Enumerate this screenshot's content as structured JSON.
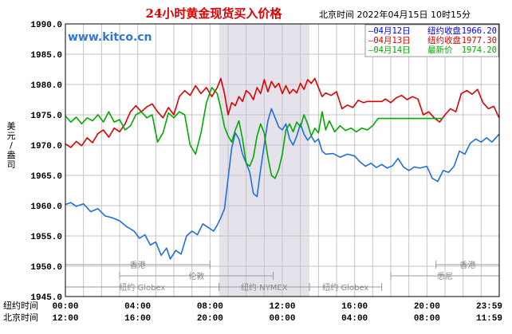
{
  "chart_data": {
    "type": "line",
    "title": "24小时黄金现货买入价格",
    "header_info": "北京时间  2022年04月15日 10时15分",
    "watermark": "www.kitco.cn",
    "ylabel": [
      "美",
      "元",
      "/",
      "盎",
      "司"
    ],
    "ylim": [
      1945,
      1990
    ],
    "yticks": [
      "1990.0",
      "1985.0",
      "1980.0",
      "1975.0",
      "1970.0",
      "1965.0",
      "1960.0",
      "1955.0",
      "1950.0",
      "1945.0"
    ],
    "xlim": [
      0,
      24
    ],
    "x_rows": [
      {
        "label": "纽约时间",
        "ticks": [
          "00:00",
          "04:00",
          "08:00",
          "12:00",
          "16:00",
          "20:00",
          "23:59"
        ]
      },
      {
        "label": "北京时间",
        "ticks": [
          "12:00",
          "16:00",
          "20:00",
          "00:00",
          "04:00",
          "08:00",
          "11:59"
        ]
      }
    ],
    "shaded_region": [
      8.5,
      13.5
    ],
    "market_bands": [
      {
        "name": "香港",
        "start": 0,
        "end": 8,
        "row": 0
      },
      {
        "name": "香港",
        "start": 20.5,
        "end": 24,
        "row": 0
      },
      {
        "name": "伦敦",
        "start": 3,
        "end": 11.5,
        "row": 1
      },
      {
        "name": "悉尼",
        "start": 18,
        "end": 24,
        "row": 1
      },
      {
        "name": "纽约 Globex",
        "start": 0,
        "end": 8.5,
        "row": 2
      },
      {
        "name": "纽约 NYMEX",
        "start": 8.5,
        "end": 13.5,
        "row": 2
      },
      {
        "name": "纽约 Globex",
        "start": 13.5,
        "end": 17.5,
        "row": 2
      }
    ],
    "legend": [
      {
        "date": "—04月12日",
        "kind": "纽约收盘",
        "value": "1966.20",
        "color": "#0000ff"
      },
      {
        "date": "—04月13日",
        "kind": "纽约收盘",
        "value": "1977.30",
        "color": "#dd0000"
      },
      {
        "date": "—04月14日",
        "kind": "最新价",
        "value": "1974.20",
        "color": "#00aa00"
      }
    ],
    "series": [
      {
        "name": "04月12日",
        "color": "#1f6fdc",
        "points": [
          [
            0,
            1960.2
          ],
          [
            0.3,
            1960.5
          ],
          [
            0.6,
            1959.9
          ],
          [
            1.0,
            1960.3
          ],
          [
            1.4,
            1959.0
          ],
          [
            1.8,
            1959.5
          ],
          [
            2.2,
            1958.3
          ],
          [
            2.6,
            1958.0
          ],
          [
            3.0,
            1957.5
          ],
          [
            3.4,
            1956.5
          ],
          [
            3.8,
            1955.8
          ],
          [
            4.1,
            1954.6
          ],
          [
            4.4,
            1955.2
          ],
          [
            4.7,
            1953.5
          ],
          [
            5.0,
            1954.0
          ],
          [
            5.3,
            1951.8
          ],
          [
            5.6,
            1953.0
          ],
          [
            5.8,
            1951.2
          ],
          [
            6.1,
            1952.6
          ],
          [
            6.4,
            1952.0
          ],
          [
            6.7,
            1955.0
          ],
          [
            7.0,
            1955.8
          ],
          [
            7.3,
            1955.2
          ],
          [
            7.6,
            1957.0
          ],
          [
            7.9,
            1956.4
          ],
          [
            8.2,
            1955.8
          ],
          [
            8.4,
            1956.8
          ],
          [
            8.6,
            1958.0
          ],
          [
            8.8,
            1959.5
          ],
          [
            9.0,
            1964.5
          ],
          [
            9.2,
            1969.5
          ],
          [
            9.4,
            1972.0
          ],
          [
            9.6,
            1971.0
          ],
          [
            9.8,
            1968.5
          ],
          [
            10.0,
            1967.0
          ],
          [
            10.2,
            1965.5
          ],
          [
            10.4,
            1962.0
          ],
          [
            10.6,
            1961.5
          ],
          [
            10.8,
            1966.0
          ],
          [
            11.0,
            1970.0
          ],
          [
            11.2,
            1974.0
          ],
          [
            11.4,
            1976.0
          ],
          [
            11.6,
            1974.5
          ],
          [
            11.8,
            1973.0
          ],
          [
            12.0,
            1972.5
          ],
          [
            12.2,
            1973.5
          ],
          [
            12.4,
            1971.0
          ],
          [
            12.6,
            1970.0
          ],
          [
            12.8,
            1971.5
          ],
          [
            13.0,
            1973.5
          ],
          [
            13.2,
            1971.8
          ],
          [
            13.4,
            1970.8
          ],
          [
            13.6,
            1971.5
          ],
          [
            13.8,
            1970.5
          ],
          [
            14.0,
            1971.0
          ],
          [
            14.2,
            1969.0
          ],
          [
            14.4,
            1968.5
          ],
          [
            14.8,
            1968.6
          ],
          [
            15.2,
            1968.0
          ],
          [
            15.6,
            1968.5
          ],
          [
            16.0,
            1968.2
          ],
          [
            16.3,
            1967.2
          ],
          [
            16.6,
            1966.5
          ],
          [
            16.9,
            1967.0
          ],
          [
            17.2,
            1966.3
          ],
          [
            17.5,
            1966.8
          ],
          [
            17.8,
            1966.2
          ],
          [
            18.1,
            1966.6
          ],
          [
            18.4,
            1967.8
          ],
          [
            18.7,
            1966.4
          ],
          [
            19.0,
            1965.8
          ],
          [
            19.3,
            1966.4
          ],
          [
            19.6,
            1966.2
          ],
          [
            20.0,
            1966.5
          ],
          [
            20.3,
            1964.5
          ],
          [
            20.6,
            1964.0
          ],
          [
            20.9,
            1965.8
          ],
          [
            21.2,
            1965.5
          ],
          [
            21.5,
            1966.5
          ],
          [
            21.8,
            1969.0
          ],
          [
            22.1,
            1968.5
          ],
          [
            22.4,
            1970.3
          ],
          [
            22.7,
            1971.0
          ],
          [
            23.0,
            1970.5
          ],
          [
            23.3,
            1971.2
          ],
          [
            23.6,
            1970.5
          ],
          [
            23.99,
            1971.8
          ]
        ]
      },
      {
        "name": "04月13日",
        "color": "#dd0000",
        "points": [
          [
            0,
            1970.2
          ],
          [
            0.3,
            1969.6
          ],
          [
            0.6,
            1970.6
          ],
          [
            0.9,
            1969.9
          ],
          [
            1.2,
            1971.2
          ],
          [
            1.5,
            1970.4
          ],
          [
            1.8,
            1971.9
          ],
          [
            2.1,
            1972.5
          ],
          [
            2.4,
            1971.3
          ],
          [
            2.7,
            1972.8
          ],
          [
            3.0,
            1972.2
          ],
          [
            3.3,
            1973.5
          ],
          [
            3.6,
            1975.5
          ],
          [
            3.9,
            1976.5
          ],
          [
            4.2,
            1975.5
          ],
          [
            4.5,
            1976.3
          ],
          [
            4.8,
            1976.8
          ],
          [
            5.1,
            1975.5
          ],
          [
            5.4,
            1974.5
          ],
          [
            5.7,
            1976.2
          ],
          [
            6.0,
            1975.0
          ],
          [
            6.3,
            1978.0
          ],
          [
            6.6,
            1979.0
          ],
          [
            6.9,
            1978.2
          ],
          [
            7.2,
            1979.8
          ],
          [
            7.5,
            1978.5
          ],
          [
            7.8,
            1979.5
          ],
          [
            8.1,
            1978.0
          ],
          [
            8.4,
            1979.5
          ],
          [
            8.6,
            1981.0
          ],
          [
            8.8,
            1978.5
          ],
          [
            9.0,
            1975.0
          ],
          [
            9.2,
            1977.0
          ],
          [
            9.4,
            1976.5
          ],
          [
            9.6,
            1978.0
          ],
          [
            9.8,
            1977.2
          ],
          [
            10.0,
            1979.0
          ],
          [
            10.2,
            1978.5
          ],
          [
            10.4,
            1977.5
          ],
          [
            10.6,
            1979.5
          ],
          [
            10.8,
            1978.5
          ],
          [
            11.0,
            1980.8
          ],
          [
            11.2,
            1978.8
          ],
          [
            11.4,
            1980.5
          ],
          [
            11.6,
            1979.5
          ],
          [
            11.8,
            1980.2
          ],
          [
            12.0,
            1978.5
          ],
          [
            12.2,
            1979.8
          ],
          [
            12.4,
            1978.5
          ],
          [
            12.6,
            1979.2
          ],
          [
            12.8,
            1978.6
          ],
          [
            13.0,
            1980.2
          ],
          [
            13.2,
            1979.2
          ],
          [
            13.4,
            1980.8
          ],
          [
            13.6,
            1980.2
          ],
          [
            13.8,
            1981.0
          ],
          [
            14.0,
            1979.5
          ],
          [
            14.2,
            1978.0
          ],
          [
            14.4,
            1978.6
          ],
          [
            14.7,
            1978.2
          ],
          [
            15.0,
            1978.8
          ],
          [
            15.3,
            1976.0
          ],
          [
            15.6,
            1976.6
          ],
          [
            15.9,
            1976.2
          ],
          [
            16.2,
            1977.4
          ],
          [
            16.5,
            1977.0
          ],
          [
            16.7,
            1977.2
          ],
          [
            17.5,
            1977.2
          ],
          [
            17.7,
            1977.6
          ],
          [
            18.0,
            1977.0
          ],
          [
            18.3,
            1977.8
          ],
          [
            18.6,
            1978.2
          ],
          [
            18.9,
            1977.5
          ],
          [
            19.2,
            1978.0
          ],
          [
            19.5,
            1977.6
          ],
          [
            19.8,
            1975.0
          ],
          [
            20.1,
            1975.5
          ],
          [
            20.4,
            1974.5
          ],
          [
            20.7,
            1973.8
          ],
          [
            21.0,
            1975.0
          ],
          [
            21.3,
            1976.0
          ],
          [
            21.6,
            1975.5
          ],
          [
            21.9,
            1978.5
          ],
          [
            22.2,
            1979.0
          ],
          [
            22.5,
            1978.4
          ],
          [
            22.8,
            1979.2
          ],
          [
            23.1,
            1977.0
          ],
          [
            23.4,
            1976.0
          ],
          [
            23.7,
            1976.4
          ],
          [
            23.99,
            1974.5
          ]
        ]
      },
      {
        "name": "04月14日",
        "color": "#00aa00",
        "points": [
          [
            0,
            1974.8
          ],
          [
            0.3,
            1973.8
          ],
          [
            0.6,
            1974.6
          ],
          [
            0.9,
            1973.5
          ],
          [
            1.2,
            1974.5
          ],
          [
            1.5,
            1974.0
          ],
          [
            1.8,
            1975.0
          ],
          [
            2.1,
            1973.8
          ],
          [
            2.4,
            1975.5
          ],
          [
            2.7,
            1973.8
          ],
          [
            3.0,
            1974.2
          ],
          [
            3.3,
            1972.5
          ],
          [
            3.6,
            1973.2
          ],
          [
            3.9,
            1975.0
          ],
          [
            4.2,
            1975.5
          ],
          [
            4.5,
            1974.5
          ],
          [
            4.8,
            1975.0
          ],
          [
            5.1,
            1970.5
          ],
          [
            5.4,
            1972.0
          ],
          [
            5.7,
            1975.3
          ],
          [
            6.0,
            1974.5
          ],
          [
            6.3,
            1975.5
          ],
          [
            6.6,
            1975.0
          ],
          [
            6.9,
            1970.0
          ],
          [
            7.2,
            1968.5
          ],
          [
            7.5,
            1972.0
          ],
          [
            7.8,
            1977.0
          ],
          [
            8.1,
            1979.5
          ],
          [
            8.4,
            1978.5
          ],
          [
            8.6,
            1976.0
          ],
          [
            8.8,
            1973.0
          ],
          [
            9.0,
            1971.5
          ],
          [
            9.2,
            1970.5
          ],
          [
            9.4,
            1972.5
          ],
          [
            9.6,
            1974.0
          ],
          [
            9.8,
            1971.0
          ],
          [
            10.0,
            1967.0
          ],
          [
            10.2,
            1966.5
          ],
          [
            10.4,
            1968.0
          ],
          [
            10.6,
            1971.5
          ],
          [
            10.8,
            1973.5
          ],
          [
            11.0,
            1972.0
          ],
          [
            11.2,
            1968.0
          ],
          [
            11.4,
            1965.0
          ],
          [
            11.6,
            1964.5
          ],
          [
            11.8,
            1966.0
          ],
          [
            12.0,
            1968.5
          ],
          [
            12.2,
            1972.5
          ],
          [
            12.4,
            1973.5
          ],
          [
            12.6,
            1972.2
          ],
          [
            12.8,
            1973.8
          ],
          [
            13.0,
            1973.0
          ],
          [
            13.2,
            1975.0
          ],
          [
            13.4,
            1973.5
          ],
          [
            13.6,
            1971.5
          ],
          [
            13.8,
            1972.8
          ],
          [
            14.0,
            1972.0
          ],
          [
            14.2,
            1975.5
          ],
          [
            14.4,
            1972.5
          ],
          [
            14.6,
            1974.0
          ],
          [
            14.9,
            1972.2
          ],
          [
            15.2,
            1973.2
          ],
          [
            15.5,
            1972.4
          ],
          [
            15.8,
            1972.8
          ],
          [
            16.1,
            1972.2
          ],
          [
            16.4,
            1972.8
          ],
          [
            16.7,
            1972.5
          ],
          [
            17.0,
            1973.2
          ],
          [
            17.3,
            1974.4
          ],
          [
            20.9,
            1974.4
          ]
        ]
      }
    ]
  }
}
